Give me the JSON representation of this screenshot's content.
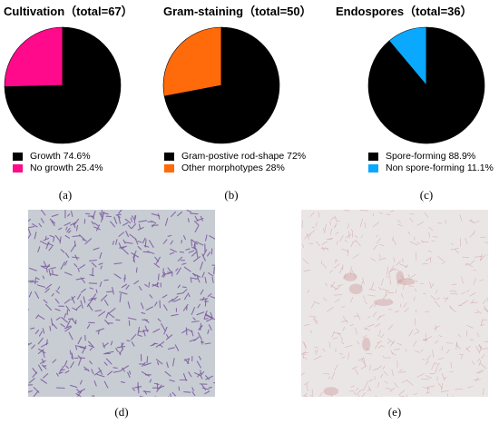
{
  "chart_data": [
    {
      "type": "pie",
      "title": "Cultivation（total=67）",
      "slices": [
        {
          "label": "Growth",
          "value": 74.6,
          "color": "#000000",
          "legend": "Growth 74.6%"
        },
        {
          "label": "No growth",
          "value": 25.4,
          "color": "#ff0a8a",
          "legend": "No growth 25.4%"
        }
      ],
      "legend_placement": "bottom"
    },
    {
      "type": "pie",
      "title": "Gram-staining（total=50）",
      "slices": [
        {
          "label": "Gram-postive rod-shape",
          "value": 72,
          "color": "#000000",
          "legend": "Gram-postive rod-shape 72%"
        },
        {
          "label": "Other morphotypes",
          "value": 28,
          "color": "#ff6a0a",
          "legend": "Other morphotypes 28%"
        }
      ],
      "legend_placement": "bottom"
    },
    {
      "type": "pie",
      "title": "Endospores（total=36）",
      "slices": [
        {
          "label": "Spore-forming",
          "value": 88.9,
          "color": "#000000",
          "legend": "Spore-forming 88.9%"
        },
        {
          "label": "Non spore-forming",
          "value": 11.1,
          "color": "#0aa8ff",
          "legend": "Non spore-forming 11.1%"
        }
      ],
      "legend_placement": "bottom"
    }
  ],
  "captions": {
    "a": "(a)",
    "b": "(b)",
    "c": "(c)",
    "d": "(d)",
    "e": "(e)"
  },
  "images": {
    "d": {
      "background": "#c8cdd4",
      "stain_color": "#7b5a9e"
    },
    "e": {
      "background": "#ebe6e6",
      "stain_color": "#c88a8a"
    }
  }
}
